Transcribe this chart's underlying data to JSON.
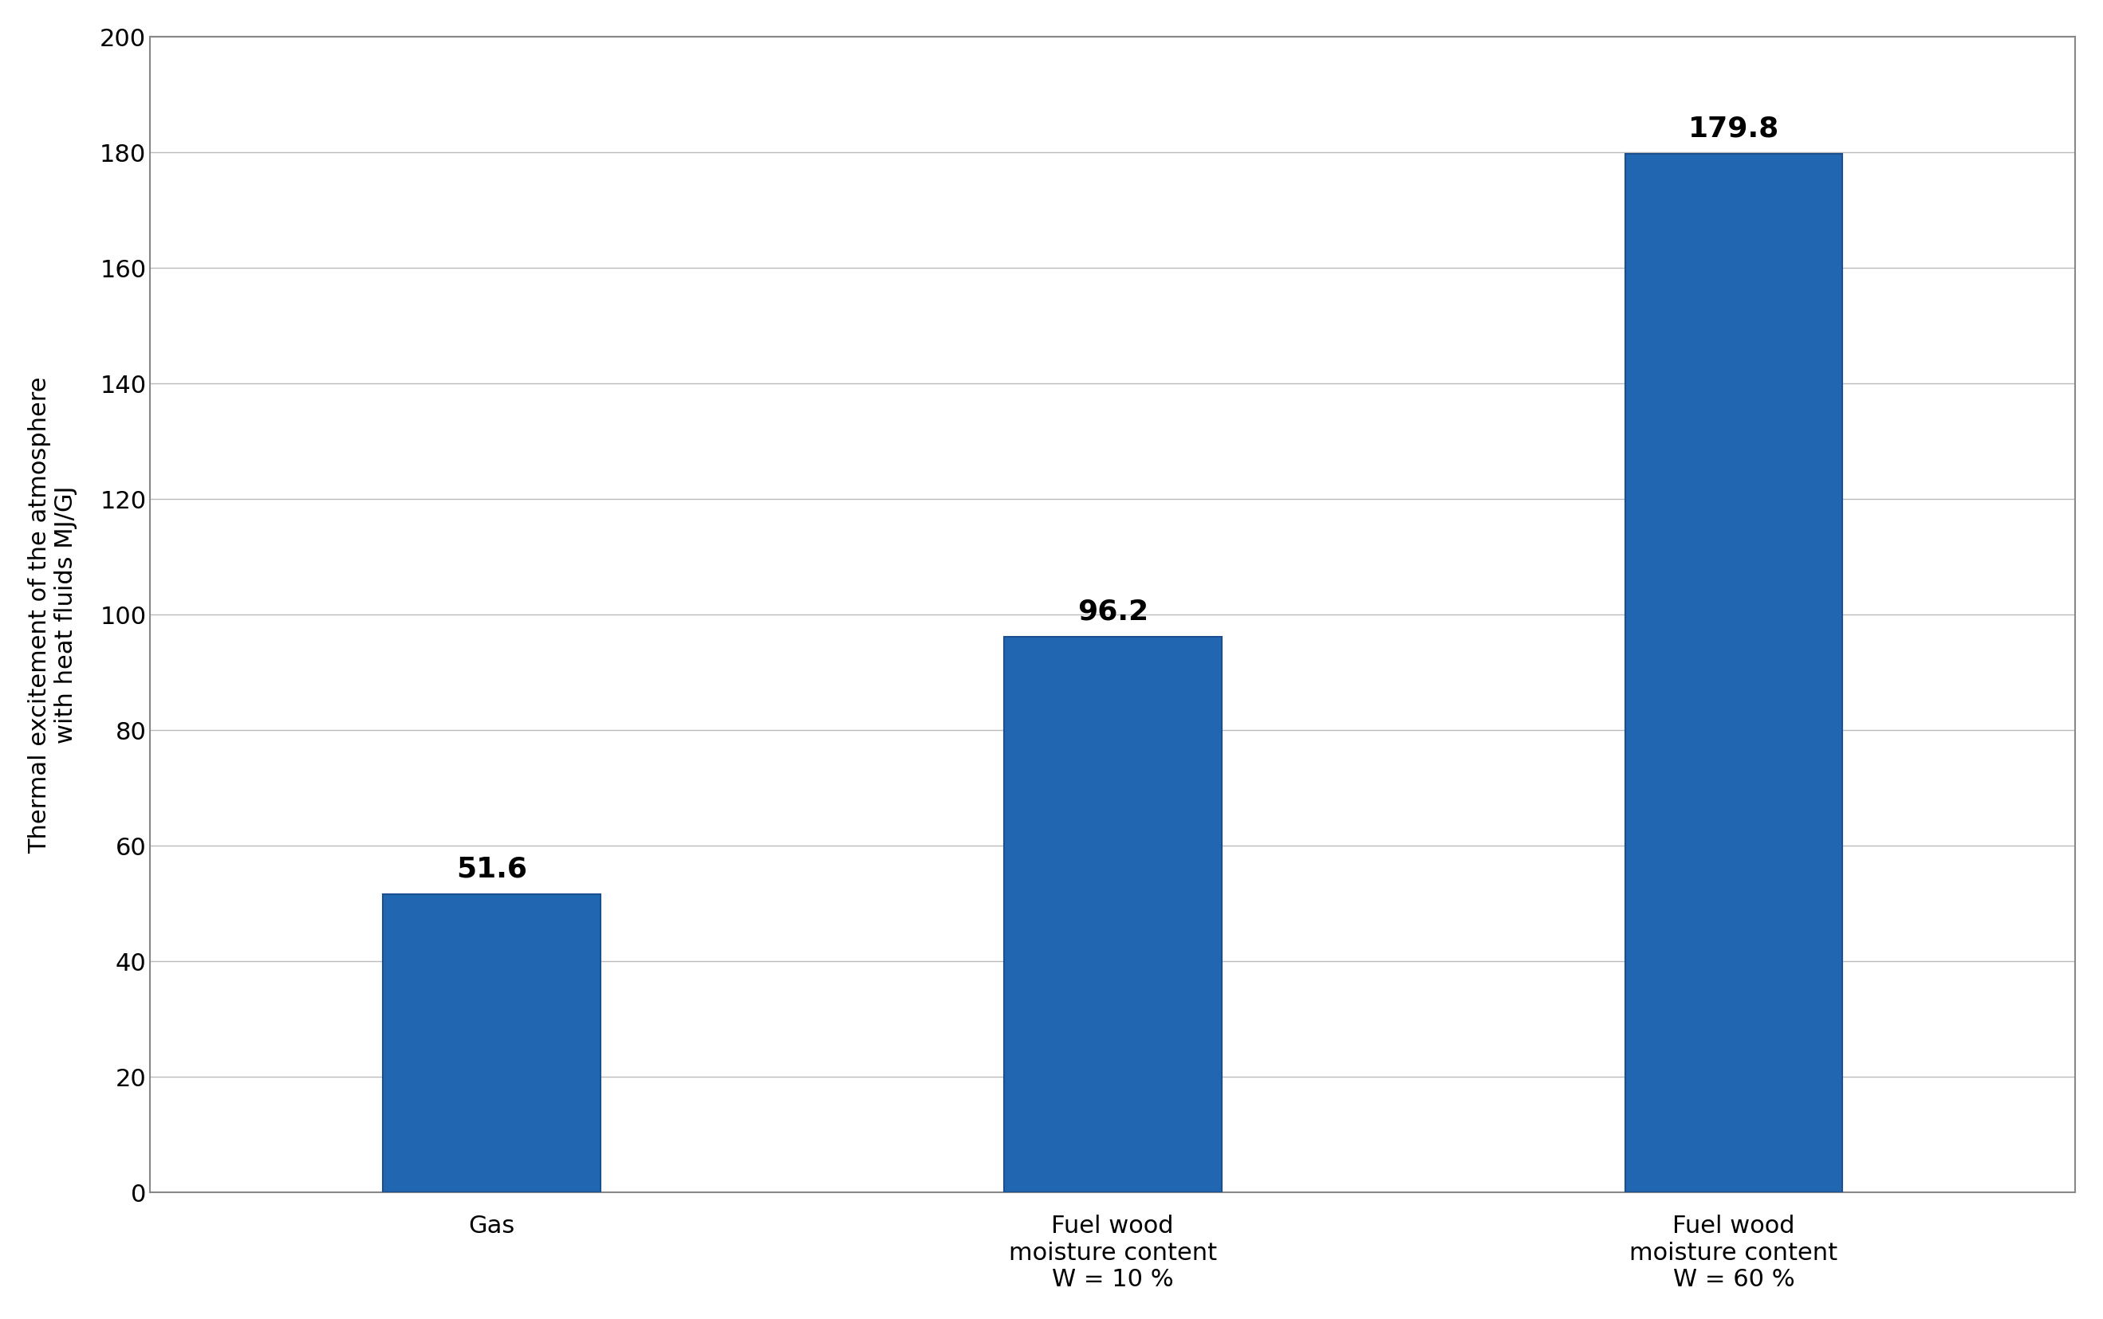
{
  "categories": [
    "Gas",
    "Fuel wood\nmoisture content\nW = 10 %",
    "Fuel wood\nmoisture content\nW = 60 %"
  ],
  "values": [
    51.6,
    96.2,
    179.8
  ],
  "bar_color": "#2166B0",
  "bar_edge_color": "#1a5090",
  "bar_top_color": "#3a82cc",
  "ylabel": "Thermal excitement of the atmosphere\nwith heat fluids MJ/GJ",
  "ylim": [
    0,
    200
  ],
  "yticks": [
    0,
    20,
    40,
    60,
    80,
    100,
    120,
    140,
    160,
    180,
    200
  ],
  "bar_width": 0.35,
  "label_fontsize": 22,
  "tick_fontsize": 22,
  "value_fontsize": 26,
  "ylabel_fontsize": 22,
  "background_color": "#ffffff",
  "outer_border_color": "#888888",
  "grid_color": "#bbbbbb",
  "spine_color": "#888888"
}
